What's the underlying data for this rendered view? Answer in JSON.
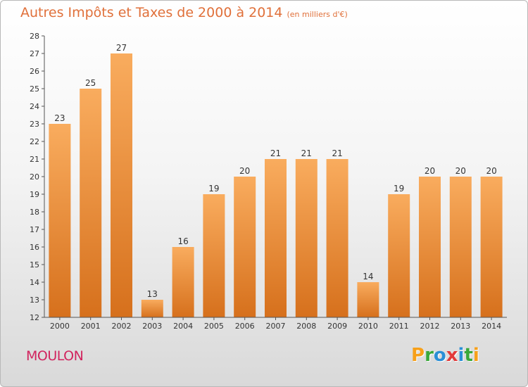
{
  "title": "Autres Impôts et Taxes de 2000 à 2014",
  "subtitle": "(en milliers d'€)",
  "commune": "MOULON",
  "logo": {
    "letters": [
      "P",
      "r",
      "o",
      "x",
      "i",
      "t",
      "i"
    ],
    "colors": [
      "#f7a019",
      "#3aa83a",
      "#2a8fd6",
      "#e23a3a",
      "#2a8fd6",
      "#3aa83a",
      "#f7a019"
    ]
  },
  "colors": {
    "bar_top": "#f9ac5e",
    "bar_bottom": "#d6701c",
    "title": "#e0703a",
    "commune": "#d1245e"
  },
  "chart_data": {
    "type": "bar",
    "categories": [
      "2000",
      "2001",
      "2002",
      "2003",
      "2004",
      "2005",
      "2006",
      "2007",
      "2008",
      "2009",
      "2010",
      "2011",
      "2012",
      "2013",
      "2014"
    ],
    "values": [
      23,
      25,
      27,
      13,
      16,
      19,
      20,
      21,
      21,
      21,
      14,
      19,
      20,
      20,
      20
    ],
    "title": "Autres Impôts et Taxes de 2000 à 2014",
    "subtitle": "(en milliers d'€)",
    "xlabel": "",
    "ylabel": "",
    "ylim": [
      12,
      28
    ],
    "yticks": [
      12,
      13,
      14,
      15,
      16,
      17,
      18,
      19,
      20,
      21,
      22,
      23,
      24,
      25,
      26,
      27,
      28
    ],
    "grid": false
  }
}
